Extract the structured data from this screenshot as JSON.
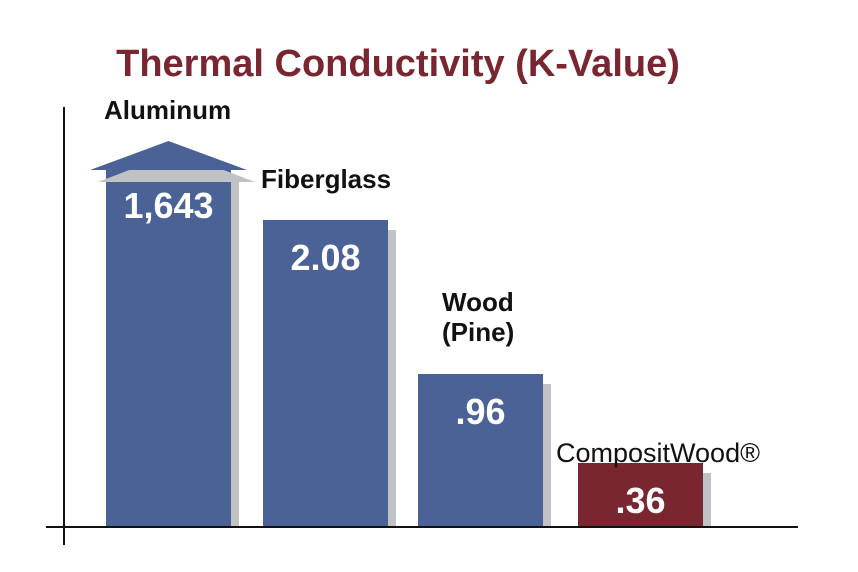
{
  "chart_data": {
    "type": "bar",
    "title": "Thermal Conductivity (K-Value)",
    "categories": [
      "Aluminum",
      "Fiberglass",
      "Wood\n(Pine)",
      "CompositWood®"
    ],
    "values": [
      1643,
      2.08,
      0.96,
      0.36
    ],
    "value_labels": [
      "1,643",
      "2.08",
      ".96",
      ".36"
    ],
    "xlabel": "",
    "ylabel": "",
    "grid": false,
    "legend": "none",
    "axis_break": "Aluminum bar truncated with arrow (off-scale)",
    "colors": {
      "title": "#7a2631",
      "standard_bar": "#4a6296",
      "highlight_bar": "#7a2631",
      "shadow": "#c0c2c6",
      "axis": "#111111"
    }
  }
}
